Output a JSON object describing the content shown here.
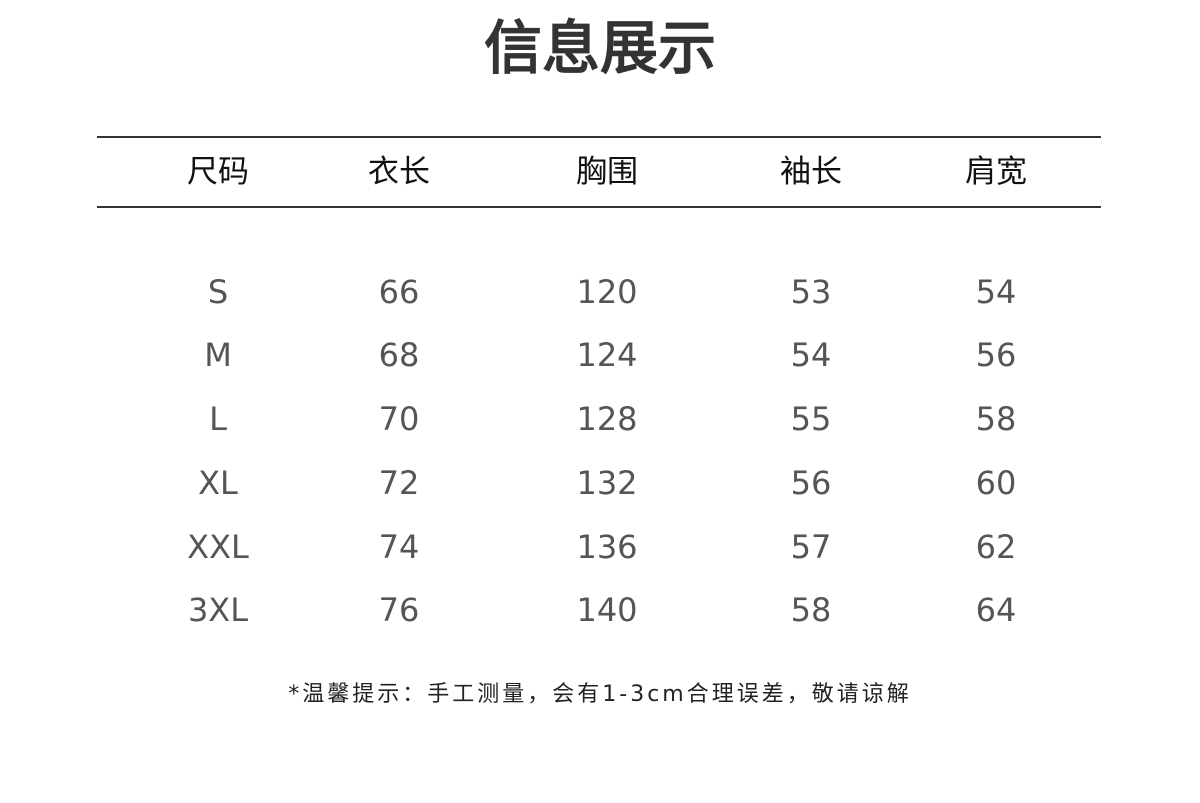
{
  "title": "信息展示",
  "table": {
    "headers": [
      "尺码",
      "衣长",
      "胸围",
      "袖长",
      "肩宽"
    ],
    "rows": [
      [
        "S",
        "66",
        "120",
        "53",
        "54"
      ],
      [
        "M",
        "68",
        "124",
        "54",
        "56"
      ],
      [
        "L",
        "70",
        "128",
        "55",
        "58"
      ],
      [
        "XL",
        "72",
        "132",
        "56",
        "60"
      ],
      [
        "XXL",
        "74",
        "136",
        "57",
        "62"
      ],
      [
        "3XL",
        "76",
        "140",
        "58",
        "64"
      ]
    ]
  },
  "note": "*温馨提示：手工测量，会有1-3cm合理误差，敬请谅解"
}
